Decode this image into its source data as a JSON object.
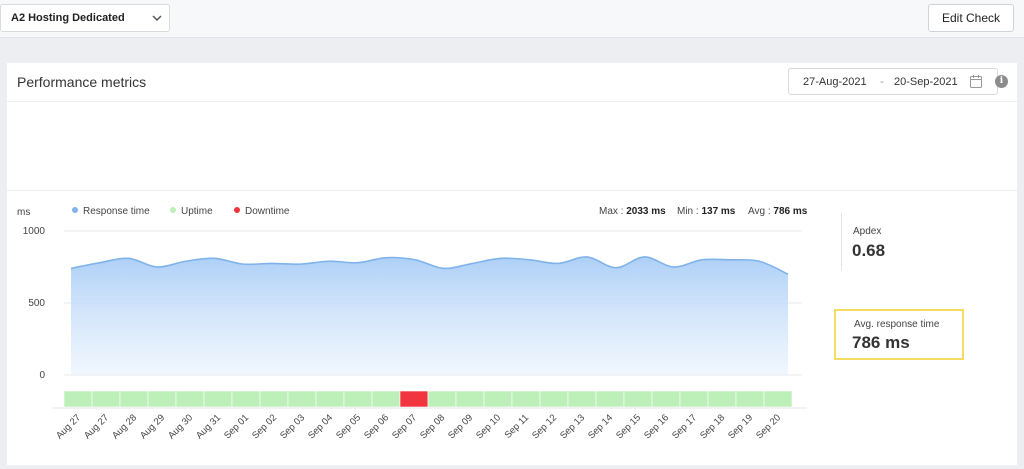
{
  "topbar": {
    "monitor_name": "A2 Hosting Dedicated",
    "edit_check_label": "Edit Check"
  },
  "card": {
    "title": "Performance metrics",
    "date_from": "27-Aug-2021",
    "date_separator": "-",
    "date_to": "20-Sep-2021",
    "info_glyph": "i"
  },
  "legend": {
    "unit": "ms",
    "response_time": "Response time",
    "uptime": "Uptime",
    "downtime": "Downtime"
  },
  "stats": {
    "max_label": "Max : ",
    "max_value": "2033 ms",
    "min_label": "Min : ",
    "min_value": "137 ms",
    "avg_label": "Avg : ",
    "avg_value": "786 ms"
  },
  "side": {
    "apdex_label": "Apdex",
    "apdex_value": "0.68",
    "avg_response_label": "Avg. response time",
    "avg_response_value": "786 ms"
  },
  "colors": {
    "response": "#7fb3ea",
    "uptime": "#bdf0b8",
    "downtime": "#f0353f"
  },
  "chart_data": {
    "type": "area",
    "x": [
      "Aug 27",
      "Aug 27",
      "Aug 28",
      "Aug 29",
      "Aug 30",
      "Aug 31",
      "Sep 01",
      "Sep 02",
      "Sep 03",
      "Sep 04",
      "Sep 05",
      "Sep 06",
      "Sep 07",
      "Sep 08",
      "Sep 09",
      "Sep 10",
      "Sep 11",
      "Sep 12",
      "Sep 13",
      "Sep 14",
      "Sep 15",
      "Sep 16",
      "Sep 17",
      "Sep 18",
      "Sep 19",
      "Sep 20"
    ],
    "series": [
      {
        "name": "Response time",
        "values": [
          740,
          780,
          810,
          750,
          790,
          810,
          770,
          775,
          770,
          790,
          780,
          815,
          800,
          740,
          775,
          810,
          800,
          775,
          820,
          745,
          820,
          750,
          800,
          800,
          790,
          700
        ]
      }
    ],
    "status": [
      "up",
      "up",
      "up",
      "up",
      "up",
      "up",
      "up",
      "up",
      "up",
      "up",
      "up",
      "up",
      "down",
      "up",
      "up",
      "up",
      "up",
      "up",
      "up",
      "up",
      "up",
      "up",
      "up",
      "up",
      "up",
      "up"
    ],
    "y_ticks": [
      0,
      500,
      1000
    ],
    "ylim": [
      0,
      1000
    ],
    "ylabel": "ms",
    "grid": true,
    "legend_position": "top-left"
  }
}
